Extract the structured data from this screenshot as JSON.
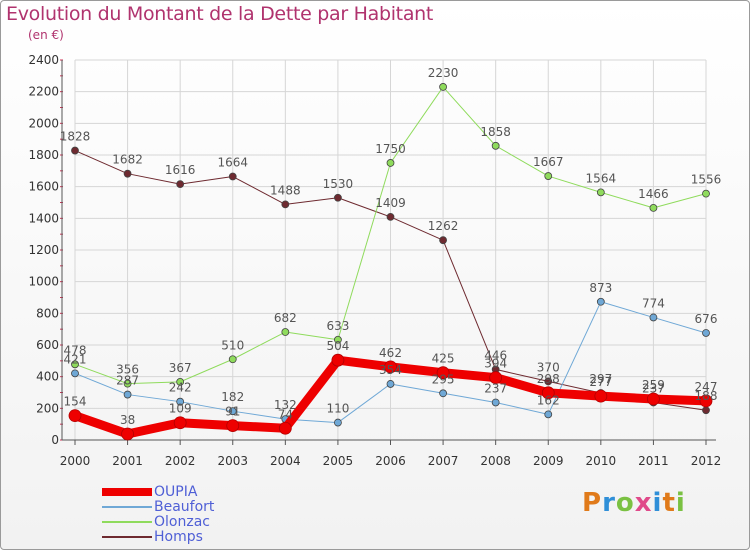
{
  "header": {
    "title": "Evolution du Montant de la Dette par Habitant",
    "subtitle": "(en €)"
  },
  "logo": {
    "letters": [
      "P",
      "r",
      "o",
      "x",
      "i",
      "t",
      "i"
    ],
    "colors": [
      "#e07a1a",
      "#2f8fd8",
      "#7ac142",
      "#e04a8a",
      "#2f8fd8",
      "#e07a1a",
      "#7ac142"
    ]
  },
  "chart_data": {
    "type": "line",
    "title": "Evolution du Montant de la Dette par Habitant",
    "subtitle": "(en €)",
    "x": [
      "2000",
      "2001",
      "2002",
      "2003",
      "2004",
      "2005",
      "2006",
      "2007",
      "2008",
      "2009",
      "2010",
      "2011",
      "2012"
    ],
    "ylim": [
      0,
      2400
    ],
    "yticks": [
      0,
      200,
      400,
      600,
      800,
      1000,
      1200,
      1400,
      1600,
      1800,
      2000,
      2200,
      2400
    ],
    "grid": true,
    "legend": "bottom-left",
    "series": [
      {
        "name": "Homps",
        "color": "#6e2a30",
        "width": 1,
        "values": [
          1828,
          1682,
          1616,
          1664,
          1488,
          1530,
          1409,
          1262,
          446,
          370,
          297,
          237,
          188
        ]
      },
      {
        "name": "Olonzac",
        "color": "#8fdb5c",
        "width": 1,
        "values": [
          478,
          356,
          367,
          510,
          682,
          633,
          1750,
          2230,
          1858,
          1667,
          1564,
          1466,
          1556
        ]
      },
      {
        "name": "Beaufort",
        "color": "#6fa8d6",
        "width": 1,
        "values": [
          421,
          287,
          242,
          182,
          132,
          110,
          354,
          295,
          237,
          162,
          873,
          774,
          676
        ]
      },
      {
        "name": "OUPIA",
        "color": "#ee0000",
        "width": 9,
        "values": [
          154,
          38,
          109,
          91,
          74,
          504,
          462,
          425,
          394,
          298,
          277,
          259,
          247
        ]
      }
    ],
    "legend_order": [
      "OUPIA",
      "Beaufort",
      "Olonzac",
      "Homps"
    ]
  }
}
